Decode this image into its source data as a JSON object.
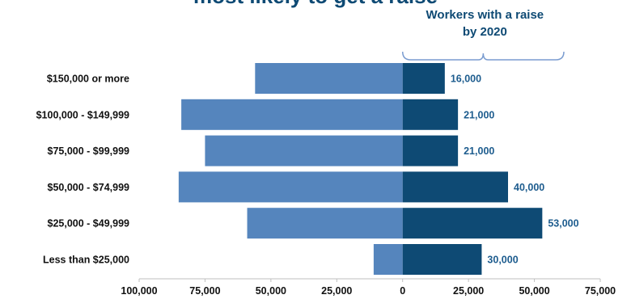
{
  "chart_data": {
    "type": "bar",
    "orientation": "horizontal",
    "title_partial": "most likely to get a raise",
    "annotation": {
      "lines": [
        "Workers with a raise",
        "by 2020"
      ]
    },
    "categories": [
      "$150,000 or more",
      "$100,000 - $149,999",
      "$75,000 - $99,999",
      "$50,000 - $74,999",
      "$25,000 - $49,999",
      "Less than $25,000"
    ],
    "series": [
      {
        "values": [
          -56000,
          -84000,
          -75000,
          -85000,
          -59000,
          -11000
        ],
        "color": "#5585bd"
      },
      {
        "name": "Workers with a raise by 2020",
        "values": [
          16000,
          21000,
          21000,
          40000,
          53000,
          30000
        ],
        "labels": [
          "16,000",
          "21,000",
          "21,000",
          "40,000",
          "53,000",
          "30,000"
        ],
        "color": "#0e4a74"
      }
    ],
    "xlim": [
      -100000,
      75000
    ],
    "xticks": [
      -100000,
      -75000,
      -50000,
      -25000,
      0,
      25000,
      50000,
      75000
    ],
    "xtick_labels": [
      "100,000",
      "75,000",
      "50,000",
      "25,000",
      "0",
      "25,000",
      "50,000",
      "75,000"
    ],
    "grid": false,
    "colors": {
      "title": "#0e4a74",
      "annotation": "#0e4a74",
      "bracket": "#7a9cd0",
      "data_label": "#1d5c8e",
      "axis": "#bfbfbf"
    }
  }
}
